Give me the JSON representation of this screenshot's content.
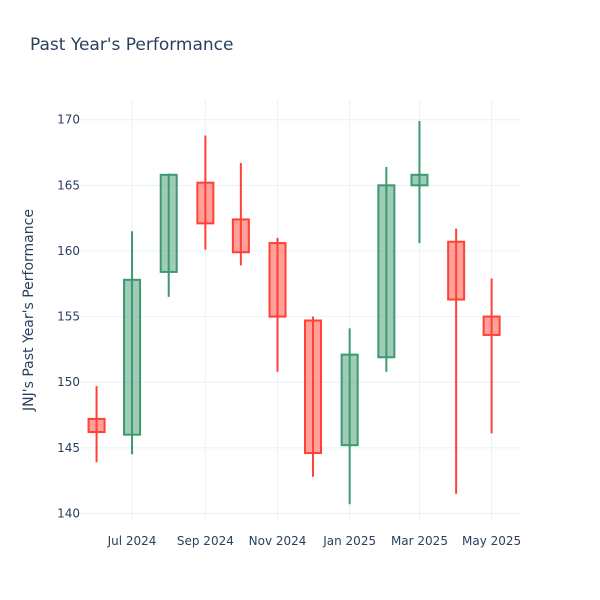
{
  "chart_data": {
    "type": "candlestick",
    "title": "Past Year's Performance",
    "xlabel": "",
    "ylabel": "JNJ's Past Year's Performance",
    "ylim": [
      139.5,
      171.5
    ],
    "yticks": [
      140,
      145,
      150,
      155,
      160,
      165,
      170
    ],
    "xlim": [
      "2024-05-18",
      "2025-05-25"
    ],
    "xticks": [
      {
        "date": "2024-07-01",
        "label": "Jul 2024"
      },
      {
        "date": "2024-09-01",
        "label": "Sep 2024"
      },
      {
        "date": "2024-11-01",
        "label": "Nov 2024"
      },
      {
        "date": "2025-01-01",
        "label": "Jan 2025"
      },
      {
        "date": "2025-03-01",
        "label": "Mar 2025"
      },
      {
        "date": "2025-05-01",
        "label": "May 2025"
      }
    ],
    "grid": true,
    "increasing_color": "#3d9970",
    "decreasing_color": "#ff4136",
    "candles": [
      {
        "date": "2024-06-01",
        "open": 147.2,
        "high": 149.7,
        "low": 143.9,
        "close": 146.2
      },
      {
        "date": "2024-07-01",
        "open": 146.0,
        "high": 161.5,
        "low": 144.5,
        "close": 157.8
      },
      {
        "date": "2024-08-01",
        "open": 158.4,
        "high": 165.9,
        "low": 156.5,
        "close": 165.8
      },
      {
        "date": "2024-09-01",
        "open": 165.2,
        "high": 168.8,
        "low": 160.1,
        "close": 162.1
      },
      {
        "date": "2024-10-01",
        "open": 162.4,
        "high": 166.7,
        "low": 158.9,
        "close": 159.9
      },
      {
        "date": "2024-11-01",
        "open": 160.6,
        "high": 161.0,
        "low": 150.8,
        "close": 155.0
      },
      {
        "date": "2024-12-01",
        "open": 154.7,
        "high": 155.0,
        "low": 142.8,
        "close": 144.6
      },
      {
        "date": "2025-01-01",
        "open": 145.2,
        "high": 154.1,
        "low": 140.7,
        "close": 152.1
      },
      {
        "date": "2025-02-01",
        "open": 151.9,
        "high": 166.4,
        "low": 150.8,
        "close": 165.0
      },
      {
        "date": "2025-03-01",
        "open": 165.0,
        "high": 169.9,
        "low": 160.6,
        "close": 165.8
      },
      {
        "date": "2025-04-01",
        "open": 160.7,
        "high": 161.7,
        "low": 141.5,
        "close": 156.3
      },
      {
        "date": "2025-05-01",
        "open": 155.0,
        "high": 157.9,
        "low": 146.1,
        "close": 153.6
      }
    ]
  }
}
